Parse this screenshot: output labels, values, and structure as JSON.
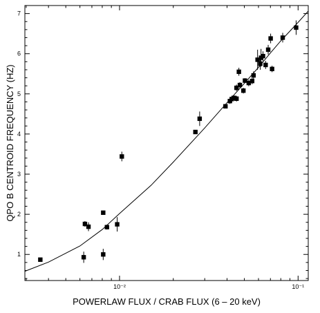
{
  "chart_data": {
    "type": "scatter",
    "title": "",
    "xlabel": "POWERLAW FLUX / CRAB FLUX (6 – 20 keV)",
    "ylabel": "QPO B CENTROID FREQUENCY (HZ)",
    "x_scale": "log",
    "xlim": [
      0.00295,
      0.114
    ],
    "ylim": [
      0.35,
      7.2
    ],
    "x_ticks": [
      {
        "value": 0.01,
        "label": "10⁻²"
      },
      {
        "value": 0.1,
        "label": "10⁻¹"
      }
    ],
    "y_ticks": [
      1,
      2,
      3,
      4,
      5,
      6,
      7
    ],
    "grid": false,
    "legend": "none",
    "marker_color": "#000000",
    "series": [
      {
        "points": [
          {
            "x": 0.0036,
            "y": 0.87,
            "yerr": 0.04
          },
          {
            "x": 0.0063,
            "y": 0.93,
            "yerr": 0.14
          },
          {
            "x": 0.0064,
            "y": 1.76,
            "yerr": 0.07
          },
          {
            "x": 0.0067,
            "y": 1.69,
            "yerr": 0.11
          },
          {
            "x": 0.0081,
            "y": 2.04,
            "yerr": 0.05
          },
          {
            "x": 0.0081,
            "y": 1.0,
            "yerr": 0.14
          },
          {
            "x": 0.0085,
            "y": 1.68,
            "yerr": 0.06
          },
          {
            "x": 0.0097,
            "y": 1.75,
            "yerr": 0.18
          },
          {
            "x": 0.0103,
            "y": 3.44,
            "yerr": 0.12
          },
          {
            "x": 0.0266,
            "y": 4.05,
            "yerr": 0.05
          },
          {
            "x": 0.0281,
            "y": 4.38,
            "yerr": 0.18
          },
          {
            "x": 0.0392,
            "y": 4.69,
            "yerr": 0.05
          },
          {
            "x": 0.0415,
            "y": 4.82,
            "yerr": 0.07
          },
          {
            "x": 0.0425,
            "y": 4.87,
            "yerr": 0.08
          },
          {
            "x": 0.0437,
            "y": 4.9,
            "yerr": 0.06
          },
          {
            "x": 0.0452,
            "y": 4.88,
            "yerr": 0.07
          },
          {
            "x": 0.0452,
            "y": 5.15,
            "yerr": 0.08
          },
          {
            "x": 0.0466,
            "y": 5.55,
            "yerr": 0.1
          },
          {
            "x": 0.0472,
            "y": 5.22,
            "yerr": 0.07
          },
          {
            "x": 0.0494,
            "y": 5.08,
            "yerr": 0.07
          },
          {
            "x": 0.0504,
            "y": 5.33,
            "yerr": 0.06
          },
          {
            "x": 0.0529,
            "y": 5.27,
            "yerr": 0.08
          },
          {
            "x": 0.0553,
            "y": 5.32,
            "yerr": 0.08
          },
          {
            "x": 0.0563,
            "y": 5.46,
            "yerr": 0.1
          },
          {
            "x": 0.0593,
            "y": 5.85,
            "yerr": 0.25
          },
          {
            "x": 0.0614,
            "y": 5.75,
            "yerr": 0.15
          },
          {
            "x": 0.062,
            "y": 5.9,
            "yerr": 0.22
          },
          {
            "x": 0.0636,
            "y": 5.94,
            "yerr": 0.12
          },
          {
            "x": 0.0658,
            "y": 5.72,
            "yerr": 0.1
          },
          {
            "x": 0.068,
            "y": 6.1,
            "yerr": 0.12
          },
          {
            "x": 0.0702,
            "y": 6.38,
            "yerr": 0.12
          },
          {
            "x": 0.0715,
            "y": 5.62,
            "yerr": 0.08
          },
          {
            "x": 0.082,
            "y": 6.4,
            "yerr": 0.12
          },
          {
            "x": 0.0975,
            "y": 6.65,
            "yerr": 0.18
          }
        ]
      }
    ],
    "fit_curve": {
      "function": "power law",
      "points": [
        {
          "x": 0.00295,
          "y": 0.58
        },
        {
          "x": 0.004,
          "y": 0.81
        },
        {
          "x": 0.006,
          "y": 1.21
        },
        {
          "x": 0.008,
          "y": 1.62
        },
        {
          "x": 0.01,
          "y": 2.02
        },
        {
          "x": 0.015,
          "y": 2.72
        },
        {
          "x": 0.02,
          "y": 3.3
        },
        {
          "x": 0.03,
          "y": 4.15
        },
        {
          "x": 0.04,
          "y": 4.78
        },
        {
          "x": 0.05,
          "y": 5.26
        },
        {
          "x": 0.06,
          "y": 5.66
        },
        {
          "x": 0.07,
          "y": 6.02
        },
        {
          "x": 0.08,
          "y": 6.32
        },
        {
          "x": 0.1,
          "y": 6.78
        },
        {
          "x": 0.114,
          "y": 7.06
        }
      ]
    }
  }
}
